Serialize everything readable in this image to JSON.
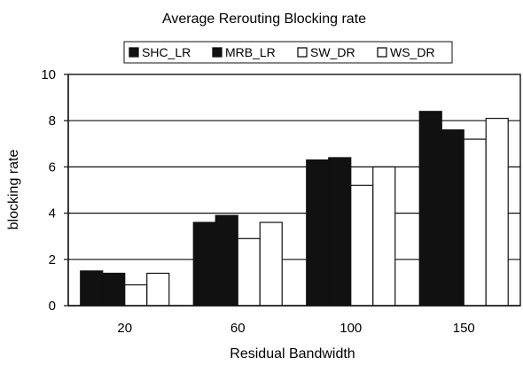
{
  "chart_data": {
    "type": "bar",
    "title": "Average Rerouting Blocking rate",
    "xlabel": "Residual Bandwidth",
    "ylabel": "blocking rate",
    "categories": [
      "20",
      "60",
      "100",
      "150"
    ],
    "ylim": [
      0,
      10
    ],
    "yticks": [
      "0",
      "2",
      "4",
      "6",
      "8",
      "10"
    ],
    "grid": true,
    "legend_position": "top",
    "series": [
      {
        "name": "SHC_LR",
        "values": [
          1.5,
          3.6,
          6.3,
          8.4
        ],
        "fill": "#111111"
      },
      {
        "name": "MRB_LR",
        "values": [
          1.4,
          3.9,
          6.4,
          7.6
        ],
        "fill": "#111111"
      },
      {
        "name": "SW_DR",
        "values": [
          0.9,
          2.9,
          5.2,
          7.2
        ],
        "fill": "#ffffff"
      },
      {
        "name": "WS_DR",
        "values": [
          1.4,
          3.6,
          6.0,
          8.1
        ],
        "fill": "#ffffff"
      }
    ]
  }
}
